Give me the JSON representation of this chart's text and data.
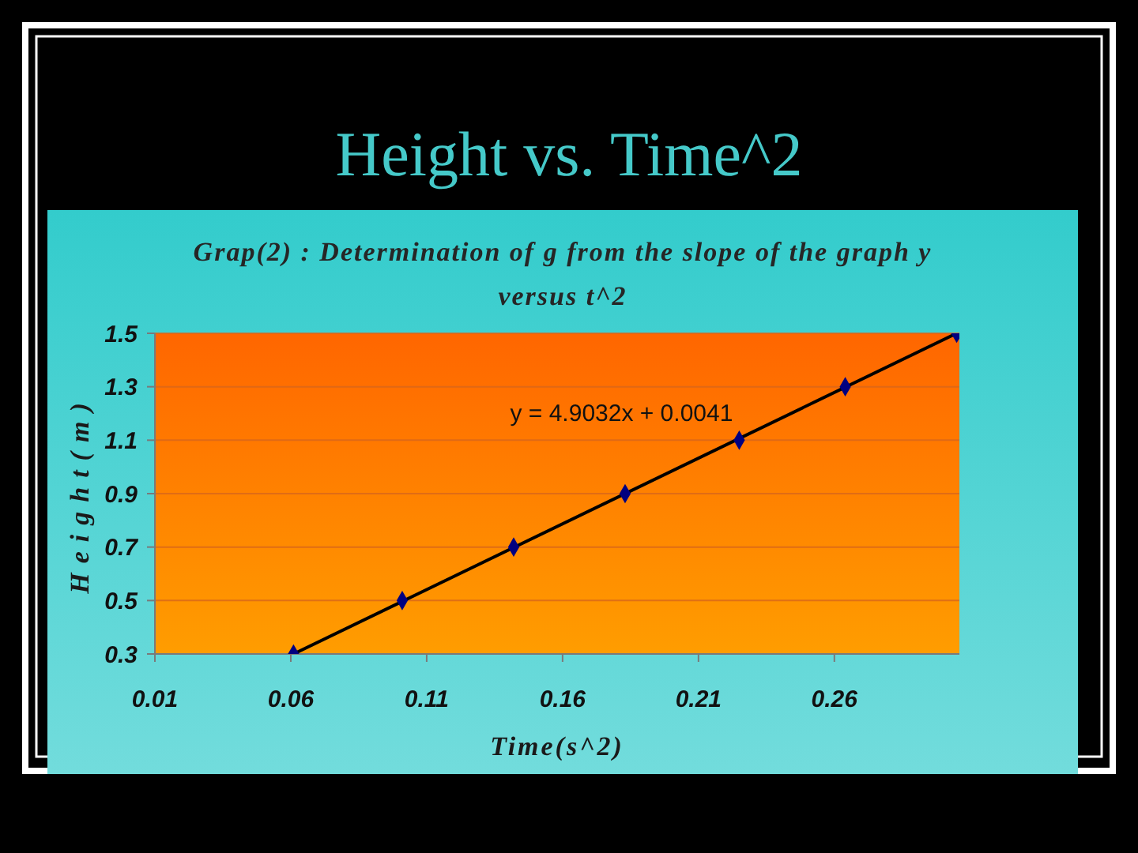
{
  "chart_data": {
    "type": "scatter",
    "title": "Height vs. Time^2",
    "subtitle": "Grap(2) : Determination of g from the slope of the graph y versus t^2",
    "xlabel": "Time(s^2)",
    "ylabel": "Height(m)",
    "annotations": [
      "y = 4.9032x + 0.0041"
    ],
    "x": [
      0.061,
      0.101,
      0.142,
      0.183,
      0.225,
      0.264,
      0.305
    ],
    "series": [
      {
        "color": "#000080",
        "values": [
          0.3,
          0.5,
          0.7,
          0.9,
          1.1,
          1.3,
          1.5
        ]
      },
      {
        "type": "line",
        "x": [
          0.061,
          0.305
        ],
        "values": [
          0.3,
          1.5
        ],
        "color": "#000000",
        "marker": "none",
        "line_style": "solid"
      }
    ],
    "xlim": [
      0.01,
      0.306
    ],
    "xticks": [
      0.01,
      0.06,
      0.11,
      0.16,
      0.21,
      0.26
    ],
    "ylim": [
      0.3,
      1.5
    ],
    "yticks": [
      0.3,
      0.5,
      0.7,
      0.9,
      1.1,
      1.3,
      1.5
    ],
    "grid": "y",
    "legend": false,
    "marker": "diamond"
  }
}
